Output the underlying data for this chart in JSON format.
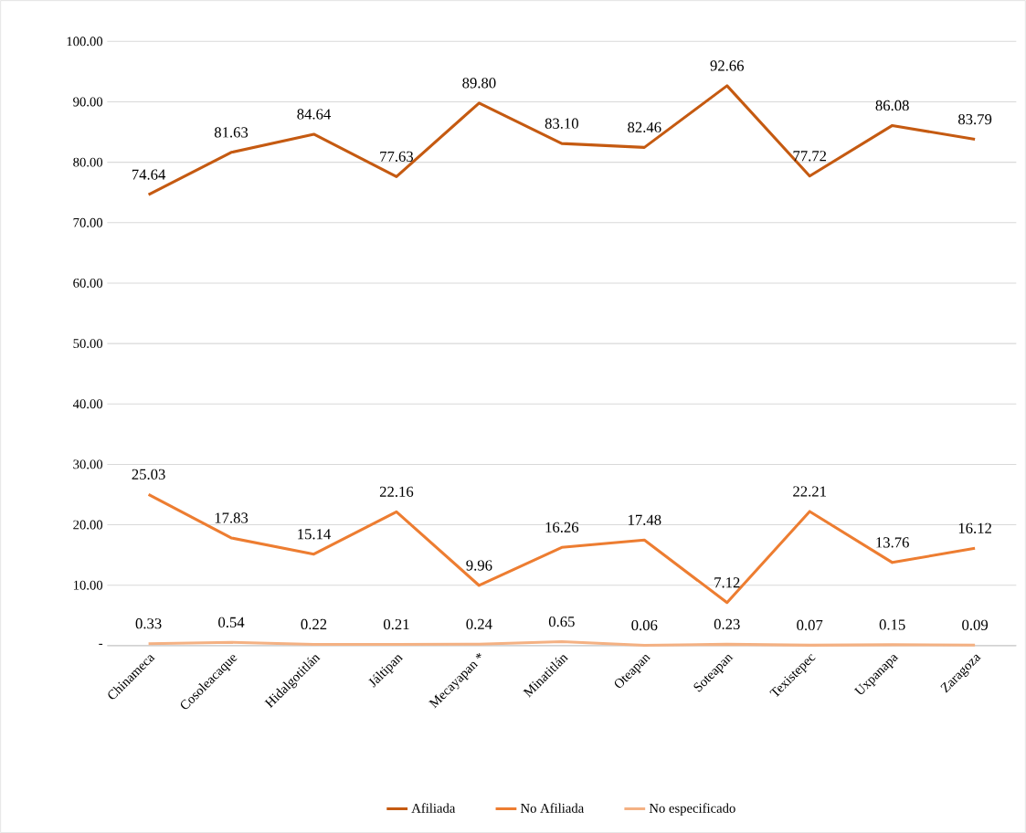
{
  "chart_data": {
    "type": "line",
    "categories": [
      "Chinameca",
      "Cosoleacaque",
      "Hidalgotitlán",
      "Jáltipan",
      "Mecayapan *",
      "Minatitlán",
      "Oteapan",
      "Soteapan",
      "Texistepec",
      "Uxpanapa",
      "Zaragoza"
    ],
    "series": [
      {
        "name": "Afiliada",
        "color": "#c55a11",
        "values": [
          74.64,
          81.63,
          84.64,
          77.63,
          89.8,
          83.1,
          82.46,
          92.66,
          77.72,
          86.08,
          83.79
        ],
        "value_labels": [
          "74.64",
          "81.63",
          "84.64",
          "77.63",
          "89.80",
          "83.10",
          "82.46",
          "92.66",
          "77.72",
          "86.08",
          "83.79"
        ]
      },
      {
        "name": "No Afiliada",
        "color": "#ed7d31",
        "values": [
          25.03,
          17.83,
          15.14,
          22.16,
          9.96,
          16.26,
          17.48,
          7.12,
          22.21,
          13.76,
          16.12
        ],
        "value_labels": [
          "25.03",
          "17.83",
          "15.14",
          "22.16",
          "9.96",
          "16.26",
          "17.48",
          "7.12",
          "22.21",
          "13.76",
          "16.12"
        ]
      },
      {
        "name": "No especificado",
        "color": "#f4b183",
        "values": [
          0.33,
          0.54,
          0.22,
          0.21,
          0.24,
          0.65,
          0.06,
          0.23,
          0.07,
          0.15,
          0.09
        ],
        "value_labels": [
          "0.33",
          "0.54",
          "0.22",
          "0.21",
          "0.24",
          "0.65",
          "0.06",
          "0.23",
          "0.07",
          "0.15",
          "0.09"
        ]
      }
    ],
    "ylim": [
      0,
      100
    ],
    "yticks": [
      {
        "value": 0,
        "label": "-"
      },
      {
        "value": 10,
        "label": "10.00"
      },
      {
        "value": 20,
        "label": "20.00"
      },
      {
        "value": 30,
        "label": "30.00"
      },
      {
        "value": 40,
        "label": "40.00"
      },
      {
        "value": 50,
        "label": "50.00"
      },
      {
        "value": 60,
        "label": "60.00"
      },
      {
        "value": 70,
        "label": "70.00"
      },
      {
        "value": 80,
        "label": "80.00"
      },
      {
        "value": 90,
        "label": "90.00"
      },
      {
        "value": 100,
        "label": "100.00"
      }
    ],
    "grid": "y",
    "legend": "bottom",
    "marker": "none",
    "line_style": "solid"
  }
}
